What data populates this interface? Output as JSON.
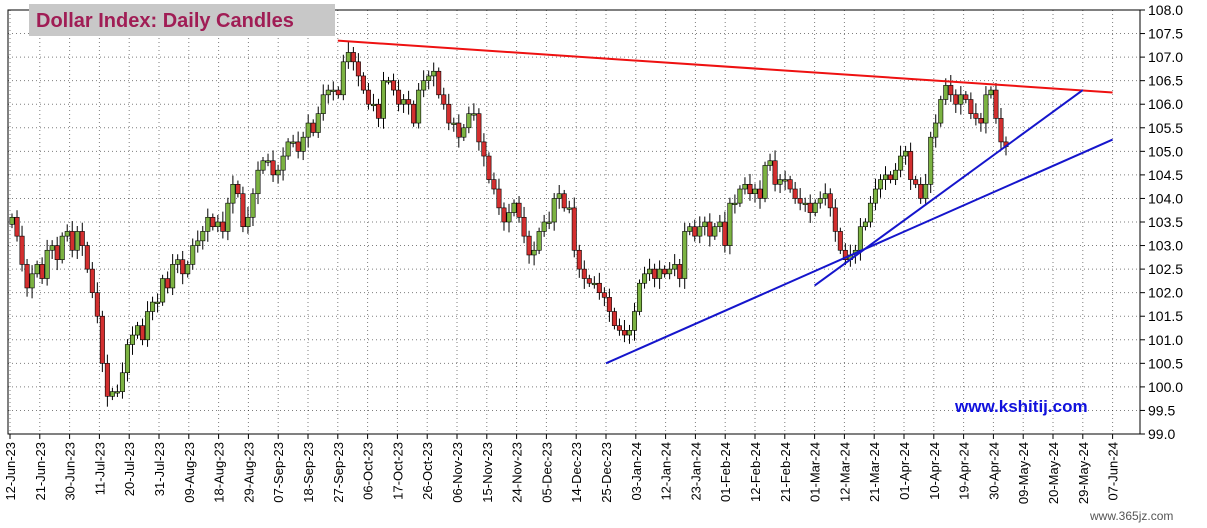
{
  "chart_data": {
    "type": "candlestick",
    "title": "Dollar Index: Daily Candles",
    "source_label": "www.kshitij.com",
    "watermark": "www.365jz.com",
    "ylim": [
      99.0,
      108.0
    ],
    "y_ticks": [
      "99.0",
      "99.5",
      "100.0",
      "100.5",
      "101.0",
      "101.5",
      "102.0",
      "102.5",
      "103.0",
      "103.5",
      "104.0",
      "104.5",
      "105.0",
      "105.5",
      "106.0",
      "106.5",
      "107.0",
      "107.5",
      "108.0"
    ],
    "x_ticks": [
      "12-Jun-23",
      "21-Jun-23",
      "30-Jun-23",
      "11-Jul-23",
      "20-Jul-23",
      "31-Jul-23",
      "09-Aug-23",
      "18-Aug-23",
      "29-Aug-23",
      "07-Sep-23",
      "18-Sep-23",
      "27-Sep-23",
      "06-Oct-23",
      "17-Oct-23",
      "26-Oct-23",
      "06-Nov-23",
      "15-Nov-23",
      "24-Nov-23",
      "05-Dec-23",
      "14-Dec-23",
      "25-Dec-23",
      "03-Jan-24",
      "12-Jan-24",
      "23-Jan-24",
      "01-Feb-24",
      "12-Feb-24",
      "21-Feb-24",
      "01-Mar-24",
      "12-Mar-24",
      "21-Mar-24",
      "01-Apr-24",
      "10-Apr-24",
      "19-Apr-24",
      "30-Apr-24",
      "09-May-24",
      "20-May-24",
      "29-May-24",
      "07-Jun-24"
    ],
    "grid": true,
    "up_color": "#7CB342",
    "down_color": "#D32F2F",
    "closes": [
      103.6,
      103.2,
      102.6,
      102.1,
      102.4,
      102.6,
      102.3,
      102.9,
      103.0,
      102.7,
      103.2,
      103.3,
      102.9,
      103.3,
      103.0,
      102.5,
      102.0,
      101.5,
      100.5,
      99.8,
      99.9,
      99.9,
      100.3,
      100.9,
      101.1,
      101.3,
      101.0,
      101.6,
      101.8,
      101.8,
      102.3,
      102.1,
      102.6,
      102.7,
      102.4,
      102.6,
      103.0,
      103.1,
      103.3,
      103.6,
      103.4,
      103.5,
      103.3,
      103.9,
      104.3,
      104.1,
      103.4,
      103.6,
      104.1,
      104.6,
      104.8,
      104.8,
      104.5,
      104.6,
      104.9,
      105.2,
      105.2,
      105.0,
      105.3,
      105.6,
      105.4,
      105.8,
      106.2,
      106.3,
      106.3,
      106.2,
      106.9,
      107.1,
      106.9,
      106.6,
      106.3,
      106.0,
      106.0,
      105.7,
      106.5,
      106.5,
      106.3,
      106.0,
      106.1,
      106.0,
      105.6,
      106.3,
      106.5,
      106.6,
      106.7,
      106.2,
      106.0,
      105.6,
      105.6,
      105.3,
      105.5,
      105.8,
      105.8,
      105.2,
      104.9,
      104.4,
      104.2,
      103.8,
      103.5,
      103.7,
      103.9,
      103.6,
      103.2,
      102.8,
      102.9,
      103.3,
      103.5,
      103.5,
      104.0,
      104.1,
      103.8,
      103.8,
      102.9,
      102.5,
      102.3,
      102.2,
      102.2,
      102.0,
      101.9,
      101.6,
      101.3,
      101.2,
      101.1,
      101.2,
      101.6,
      102.2,
      102.4,
      102.5,
      102.3,
      102.5,
      102.4,
      102.5,
      102.6,
      102.3,
      103.3,
      103.4,
      103.2,
      103.4,
      103.5,
      103.2,
      103.4,
      103.5,
      103.0,
      103.9,
      103.9,
      104.2,
      104.3,
      104.1,
      104.2,
      104.0,
      104.7,
      104.8,
      104.3,
      104.4,
      104.4,
      104.2,
      104.0,
      103.9,
      103.9,
      103.7,
      103.9,
      104.0,
      104.1,
      103.8,
      103.3,
      102.9,
      102.7,
      102.8,
      102.9,
      103.4,
      103.5,
      103.9,
      104.2,
      104.4,
      104.5,
      104.4,
      104.6,
      104.9,
      105.0,
      104.4,
      104.3,
      104.0,
      104.3,
      105.3,
      105.6,
      106.1,
      106.4,
      106.2,
      106.0,
      106.2,
      106.1,
      105.8,
      105.7,
      105.6,
      106.2,
      106.3,
      105.7,
      105.2,
      105.1
    ],
    "trendlines": [
      {
        "color": "#EE1111",
        "x": [
          "27-Sep-23",
          "07-Jun-24"
        ],
        "y": [
          107.35,
          106.25
        ]
      },
      {
        "color": "#1515CC",
        "x": [
          "25-Dec-23",
          "07-Jun-24"
        ],
        "y": [
          100.5,
          105.25
        ]
      },
      {
        "color": "#1515CC",
        "x": [
          "01-Mar-24",
          "29-May-24"
        ],
        "y": [
          102.15,
          106.3
        ]
      }
    ]
  }
}
